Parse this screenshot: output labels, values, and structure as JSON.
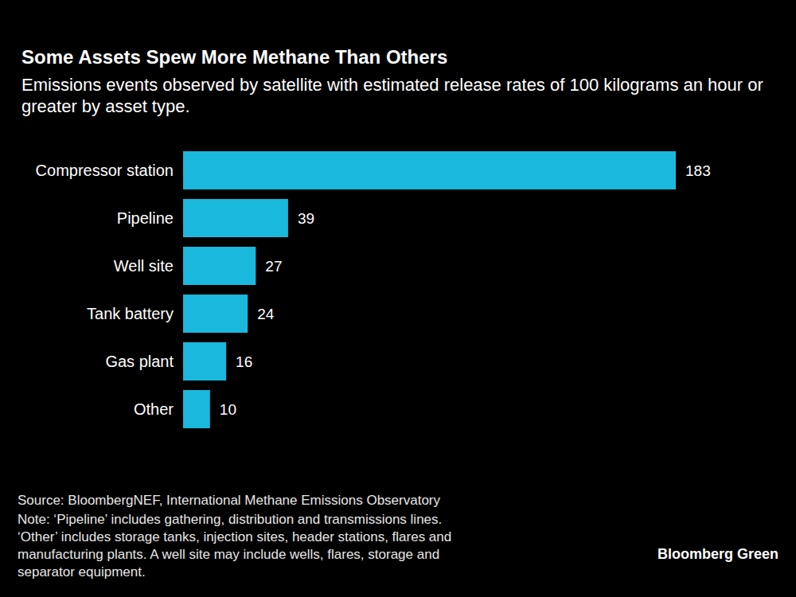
{
  "chart_data": {
    "type": "bar",
    "orientation": "horizontal",
    "title": "Some Assets Spew More Methane Than Others",
    "subtitle": "Emissions events observed by satellite with estimated release rates of 100 kilograms an hour or greater by asset type.",
    "categories": [
      "Compressor station",
      "Pipeline",
      "Well site",
      "Tank battery",
      "Gas plant",
      "Other"
    ],
    "values": [
      183,
      39,
      27,
      24,
      16,
      10
    ],
    "color": "#1ab8dc",
    "data_labels": true,
    "tick_labels": "y",
    "grid": false,
    "source": "Source: BloombergNEF, International Methane Emissions Observatory",
    "note": "Note: ‘Pipeline’ includes gathering, distribution and transmissions lines. ‘Other’ includes storage tanks, injection sites, header stations, flares and manufacturing plants. A well site may include wells, flares, storage and separator equipment.",
    "credit": "Bloomberg Green"
  }
}
